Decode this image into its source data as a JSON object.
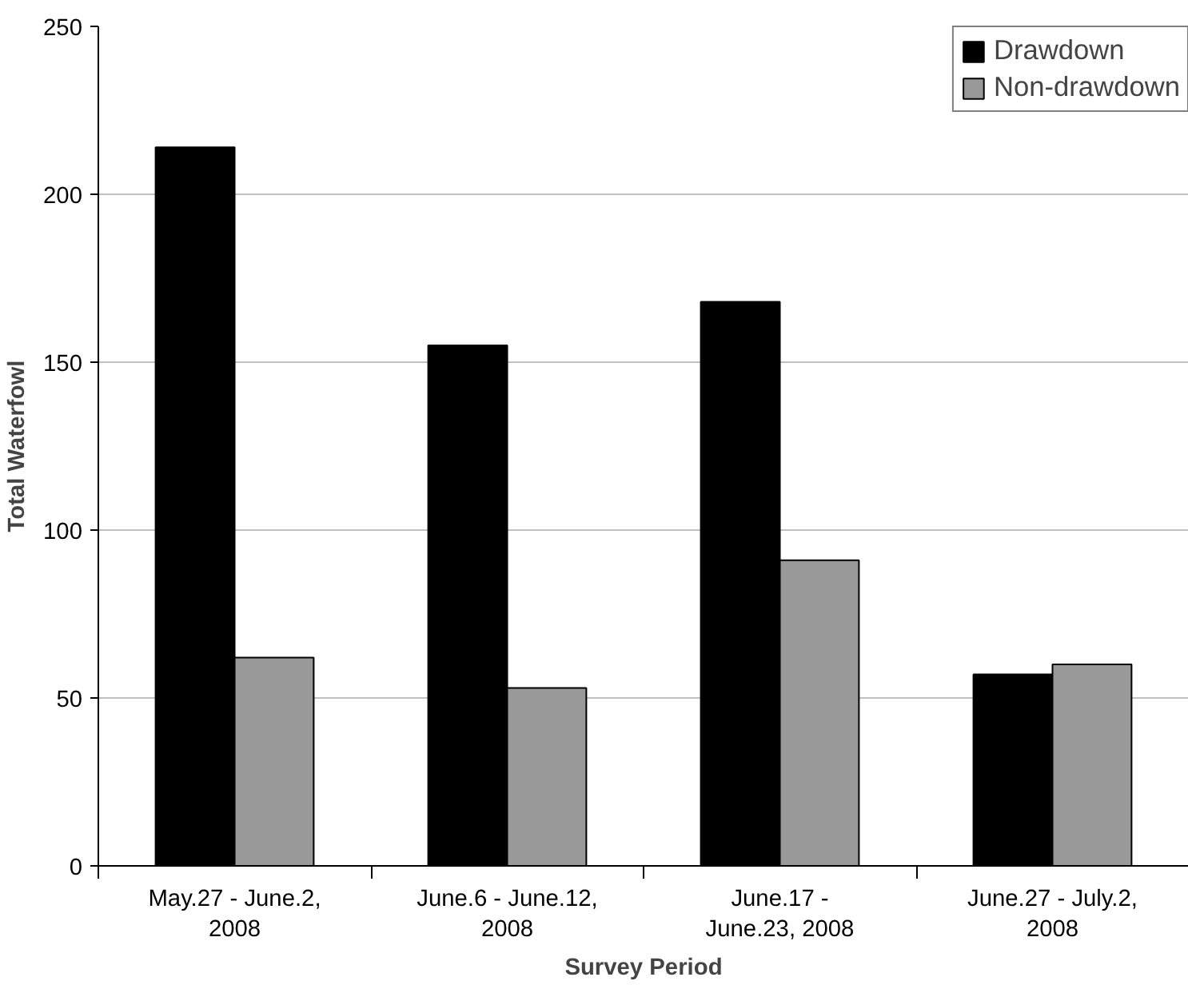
{
  "chart_data": {
    "type": "bar",
    "xlabel": "Survey Period",
    "ylabel": "Total Waterfowl",
    "categories": [
      "May.27 - June.2,\n2008",
      "June.6 - June.12,\n2008",
      "June.17 -\nJune.23, 2008",
      "June.27 - July.2,\n2008"
    ],
    "series": [
      {
        "name": "Drawdown",
        "color": "#000000",
        "values": [
          214,
          155,
          168,
          57
        ]
      },
      {
        "name": "Non-drawdown",
        "color": "#999999",
        "values": [
          62,
          53,
          91,
          60
        ]
      }
    ],
    "ylim": [
      0,
      250
    ],
    "yticks": [
      0,
      50,
      100,
      150,
      200,
      250
    ],
    "grid": "y",
    "legend": "top right"
  }
}
